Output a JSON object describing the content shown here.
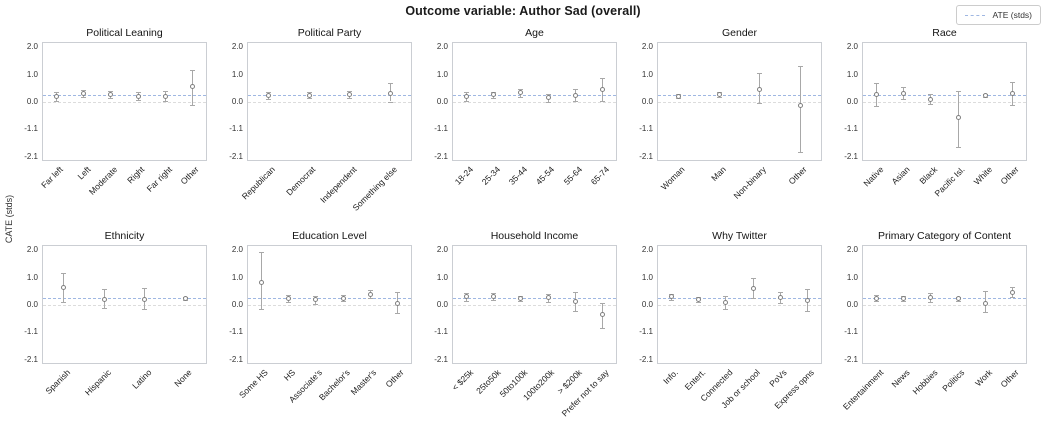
{
  "figure": {
    "title": "Outcome variable: Author Sad (overall)",
    "ylabel": "CATE (stds)"
  },
  "legend": {
    "label": "ATE (stds)"
  },
  "colors": {
    "ate_line": "#9fb7e2",
    "zero_line": "#dcdcdc",
    "error_bar": "#a8a8a8",
    "marker_edge": "#7f7f7f",
    "spine": "#cbced3"
  },
  "axis": {
    "ylabel": "CATE (stds)",
    "ytick_labels": [
      "2.0",
      "1.0",
      "0.0",
      "-1.1",
      "-2.1"
    ],
    "ytick_values": [
      2.0,
      1.0,
      0.0,
      -1.1,
      -2.1
    ],
    "ate_value": 0.22,
    "zero_value": 0.0,
    "grid": false,
    "legend_position": "top-right"
  },
  "chart_data": [
    {
      "type": "scatter",
      "title": "Political Leaning",
      "categories": [
        "Far left",
        "Left",
        "Moderate",
        "Right",
        "Far right",
        "Other"
      ],
      "values": [
        0.18,
        0.28,
        0.25,
        0.2,
        0.2,
        0.55
      ],
      "err_low": [
        0.02,
        0.15,
        0.12,
        0.04,
        0.02,
        -0.15
      ],
      "err_high": [
        0.35,
        0.42,
        0.38,
        0.36,
        0.4,
        1.15
      ]
    },
    {
      "type": "scatter",
      "title": "Political Party",
      "categories": [
        "Republican",
        "Democrat",
        "Independent",
        "Something else"
      ],
      "values": [
        0.22,
        0.22,
        0.27,
        0.3
      ],
      "err_low": [
        0.08,
        0.11,
        0.14,
        0.0
      ],
      "err_high": [
        0.36,
        0.33,
        0.4,
        0.68
      ]
    },
    {
      "type": "scatter",
      "title": "Age",
      "categories": [
        "18-24",
        "25-34",
        "35-44",
        "45-54",
        "55-64",
        "65-74"
      ],
      "values": [
        0.18,
        0.24,
        0.32,
        0.13,
        0.23,
        0.45
      ],
      "err_low": [
        0.02,
        0.13,
        0.18,
        -0.02,
        0.01,
        0.02
      ],
      "err_high": [
        0.34,
        0.35,
        0.46,
        0.28,
        0.45,
        0.85
      ]
    },
    {
      "type": "scatter",
      "title": "Gender",
      "categories": [
        "Woman",
        "Man",
        "Non-binary",
        "Other"
      ],
      "values": [
        0.2,
        0.25,
        0.45,
        -0.18
      ],
      "err_low": [
        0.11,
        0.16,
        -0.08,
        -1.95
      ],
      "err_high": [
        0.29,
        0.34,
        1.02,
        1.3
      ]
    },
    {
      "type": "scatter",
      "title": "Race",
      "categories": [
        "Native",
        "Asian",
        "Black",
        "Pacific Isl.",
        "White",
        "Other"
      ],
      "values": [
        0.25,
        0.3,
        0.08,
        -0.65,
        0.22,
        0.28
      ],
      "err_low": [
        -0.18,
        0.08,
        -0.12,
        -1.75,
        0.16,
        -0.15
      ],
      "err_high": [
        0.68,
        0.52,
        0.28,
        0.4,
        0.28,
        0.72
      ]
    },
    {
      "type": "scatter",
      "title": "Ethnicity",
      "categories": [
        "Spanish",
        "Hispanic",
        "Latino",
        "None"
      ],
      "values": [
        0.62,
        0.2,
        0.2,
        0.22
      ],
      "err_low": [
        0.08,
        -0.15,
        -0.2,
        0.16
      ],
      "err_high": [
        1.15,
        0.55,
        0.6,
        0.28
      ]
    },
    {
      "type": "scatter",
      "title": "Education Level",
      "categories": [
        "Some HS",
        "HS",
        "Associate's",
        "Bachelor's",
        "Master's",
        "Other"
      ],
      "values": [
        0.8,
        0.22,
        0.17,
        0.23,
        0.37,
        0.05
      ],
      "err_low": [
        -0.18,
        0.1,
        0.02,
        0.13,
        0.22,
        -0.35
      ],
      "err_high": [
        1.9,
        0.34,
        0.32,
        0.33,
        0.52,
        0.45
      ]
    },
    {
      "type": "scatter",
      "title": "Household Income",
      "categories": [
        "< $25k",
        "25to50k",
        "50to100k",
        "100to200k",
        "> $200k",
        "Prefer not to say"
      ],
      "values": [
        0.28,
        0.3,
        0.22,
        0.25,
        0.1,
        -0.42
      ],
      "err_low": [
        0.14,
        0.17,
        0.12,
        0.1,
        -0.25,
        -0.95
      ],
      "err_high": [
        0.42,
        0.43,
        0.32,
        0.4,
        0.45,
        0.05
      ]
    },
    {
      "type": "scatter",
      "title": "Why Twitter",
      "categories": [
        "Info.",
        "Entert.",
        "Connected",
        "Job or school",
        "PoVs",
        "Express opns"
      ],
      "values": [
        0.28,
        0.18,
        0.07,
        0.6,
        0.27,
        0.15
      ],
      "err_low": [
        0.17,
        0.08,
        -0.18,
        0.25,
        0.07,
        -0.28
      ],
      "err_high": [
        0.39,
        0.28,
        0.32,
        0.97,
        0.47,
        0.55
      ]
    },
    {
      "type": "scatter",
      "title": "Primary Category of Content",
      "categories": [
        "Entertainment",
        "News",
        "Hobbies",
        "Politics",
        "Work",
        "Other"
      ],
      "values": [
        0.23,
        0.21,
        0.25,
        0.21,
        0.05,
        0.45
      ],
      "err_low": [
        0.13,
        0.12,
        0.08,
        0.13,
        -0.32,
        0.27
      ],
      "err_high": [
        0.33,
        0.3,
        0.42,
        0.29,
        0.5,
        0.63
      ]
    }
  ]
}
